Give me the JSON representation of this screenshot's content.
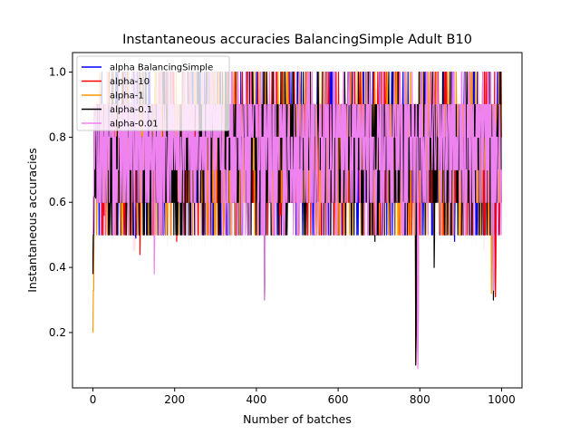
{
  "chart_data": {
    "type": "line",
    "title": "Instantaneous accuracies BalancingSimple Adult B10",
    "xlabel": "Number of batches",
    "ylabel": "Instantaneous accuracies",
    "xlim": [
      -50,
      1050
    ],
    "ylim": [
      0.03,
      1.06
    ],
    "x_ticks": [
      0,
      200,
      400,
      600,
      800,
      1000
    ],
    "y_ticks": [
      0.2,
      0.4,
      0.6,
      0.8,
      1.0
    ],
    "x_tick_labels": [
      "0",
      "200",
      "400",
      "600",
      "800",
      "1000"
    ],
    "y_tick_labels": [
      "0.2",
      "0.4",
      "0.6",
      "0.8",
      "1.0"
    ],
    "grid": false,
    "legend": "top-left",
    "x_range": [
      0,
      1000
    ],
    "series": [
      {
        "name": "alpha BalancingSimple",
        "color": "#0000ff",
        "start": [
          0.38,
          0.5
        ],
        "base_mean": 0.78,
        "spread": 0.12,
        "dips": [
          [
            105,
            0.49
          ],
          [
            210,
            0.6
          ],
          [
            320,
            0.5
          ],
          [
            795,
            0.14
          ],
          [
            885,
            0.48
          ],
          [
            980,
            0.33
          ]
        ]
      },
      {
        "name": "alpha-10",
        "color": "#ff0000",
        "start": [
          0.38,
          0.45
        ],
        "base_mean": 0.78,
        "spread": 0.12,
        "dips": [
          [
            28,
            0.56
          ],
          [
            115,
            0.44
          ],
          [
            205,
            0.48
          ],
          [
            320,
            0.5
          ],
          [
            460,
            0.56
          ],
          [
            790,
            0.11
          ],
          [
            985,
            0.31
          ]
        ]
      },
      {
        "name": "alpha-1",
        "color": "#ff9900",
        "start": [
          0.2,
          0.33
        ],
        "base_mean": 0.78,
        "spread": 0.12,
        "dips": [
          [
            40,
            0.5
          ],
          [
            320,
            0.5
          ],
          [
            580,
            0.58
          ],
          [
            795,
            0.13
          ],
          [
            975,
            0.32
          ]
        ]
      },
      {
        "name": "alpha-0.1",
        "color": "#000000",
        "start": [
          0.38,
          0.5
        ],
        "base_mean": 0.78,
        "spread": 0.12,
        "dips": [
          [
            420,
            0.3
          ],
          [
            690,
            0.48
          ],
          [
            790,
            0.1
          ],
          [
            835,
            0.4
          ],
          [
            980,
            0.3
          ]
        ]
      },
      {
        "name": "alpha-0.01",
        "color": "#ee82ee",
        "start": [
          0.5,
          0.62
        ],
        "base_mean": 0.78,
        "spread": 0.12,
        "dips": [
          [
            150,
            0.38
          ],
          [
            420,
            0.3
          ],
          [
            795,
            0.09
          ],
          [
            980,
            0.33
          ]
        ]
      }
    ],
    "band_color": "#ffcccc"
  }
}
